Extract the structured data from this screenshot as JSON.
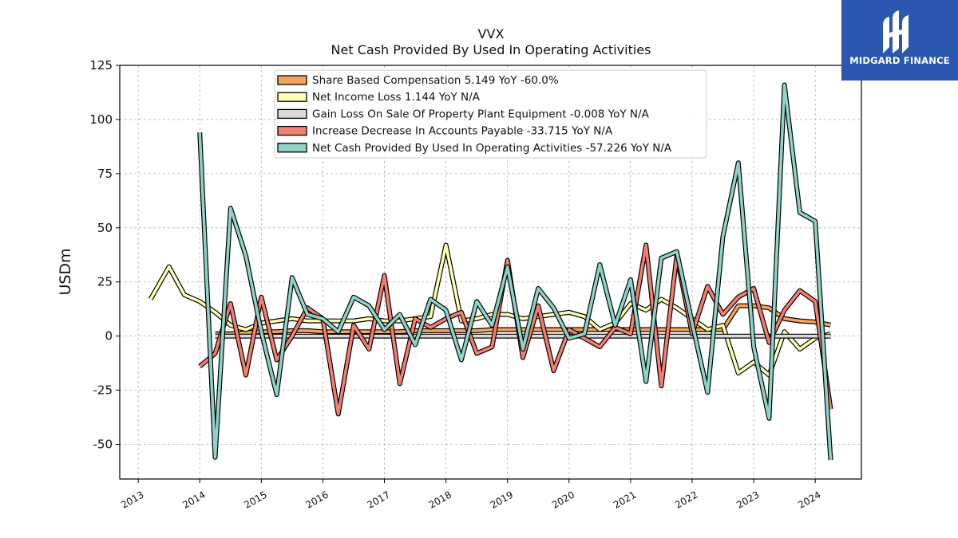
{
  "chart_data": {
    "type": "line",
    "title": "VVX",
    "subtitle": "Net Cash Provided By Used In Operating Activities",
    "ylabel": "USDm",
    "xlabel": "",
    "xlim": [
      2012.7,
      2024.75
    ],
    "ylim": [
      -66,
      125
    ],
    "yticks": [
      -50,
      -25,
      0,
      25,
      50,
      75,
      100,
      125
    ],
    "xticks": [
      2013,
      2014,
      2015,
      2016,
      2017,
      2018,
      2019,
      2020,
      2021,
      2022,
      2023,
      2024
    ],
    "grid": true,
    "legend_position": "top-center",
    "series": [
      {
        "name": "Share Based Compensation",
        "legend": "Share Based Compensation  5.149 YoY -60.0%",
        "color": "#f4a45f",
        "x": [
          2014.25,
          2014.5,
          2014.75,
          2015.0,
          2015.25,
          2015.5,
          2015.75,
          2016.0,
          2016.25,
          2016.5,
          2016.75,
          2017.0,
          2017.25,
          2017.5,
          2017.75,
          2018.0,
          2018.25,
          2018.5,
          2018.75,
          2019.0,
          2019.25,
          2019.5,
          2019.75,
          2020.0,
          2020.25,
          2020.5,
          2020.75,
          2021.0,
          2021.25,
          2021.5,
          2021.75,
          2022.0,
          2022.25,
          2022.5,
          2022.75,
          2023.0,
          2023.25,
          2023.5,
          2023.75,
          2024.0,
          2024.25
        ],
        "values": [
          1,
          1,
          1.5,
          2,
          2,
          2.5,
          2.5,
          2,
          2,
          2,
          2,
          2,
          2,
          2.5,
          2.5,
          2.5,
          2.5,
          2.5,
          3,
          3,
          3,
          3,
          3,
          3,
          3,
          3,
          3,
          3,
          3,
          3,
          3,
          3,
          3,
          3,
          14,
          14,
          13,
          8,
          7,
          6.5,
          5.1
        ]
      },
      {
        "name": "Net Income Loss",
        "legend": "Net Income Loss  1.144 YoY N/A",
        "color": "#ffffb3",
        "x": [
          2013.2,
          2013.5,
          2013.75,
          2014.0,
          2014.25,
          2014.5,
          2014.75,
          2015.0,
          2015.25,
          2015.5,
          2015.75,
          2016.0,
          2016.25,
          2016.5,
          2016.75,
          2017.0,
          2017.25,
          2017.5,
          2017.75,
          2018.0,
          2018.25,
          2018.5,
          2018.75,
          2019.0,
          2019.25,
          2019.5,
          2019.75,
          2020.0,
          2020.25,
          2020.5,
          2020.75,
          2021.0,
          2021.25,
          2021.5,
          2021.75,
          2022.0,
          2022.25,
          2022.5,
          2022.75,
          2023.0,
          2023.25,
          2023.5,
          2023.75,
          2024.0,
          2024.25
        ],
        "values": [
          17,
          32,
          19,
          16,
          11,
          5,
          3,
          6,
          7,
          8,
          7,
          7,
          7,
          7,
          8,
          7,
          7,
          8,
          9,
          42,
          7,
          8,
          10,
          10,
          8,
          9,
          10,
          11,
          9,
          3,
          6,
          15,
          12,
          17,
          13,
          8,
          3,
          5,
          -17,
          -12,
          -18,
          2,
          -6,
          -1,
          1.1
        ]
      },
      {
        "name": "Gain Loss On Sale Of Property Plant Equipment",
        "legend": "Gain Loss On Sale Of Property Plant Equipment  -0.008 YoY N/A",
        "color": "#d9d9d9",
        "x": [
          2014.25,
          2014.5,
          2014.75,
          2015.0,
          2015.25,
          2015.5,
          2015.75,
          2016.0,
          2016.25,
          2016.5,
          2016.75,
          2017.0,
          2017.25,
          2017.5,
          2017.75,
          2018.0,
          2018.25,
          2018.5,
          2018.75,
          2019.0,
          2019.25,
          2019.5,
          2019.75,
          2020.0,
          2020.25,
          2020.5,
          2020.75,
          2021.0,
          2021.25,
          2021.5,
          2021.75,
          2022.0,
          2022.25,
          2022.5,
          2022.75,
          2023.0,
          2023.25,
          2023.5,
          2023.75,
          2024.0,
          2024.25
        ],
        "values": [
          0,
          0,
          0,
          0,
          0,
          0,
          0,
          0,
          0,
          0,
          0,
          0,
          0,
          0,
          0,
          0,
          0,
          0,
          0,
          0,
          0,
          0,
          0,
          0,
          0,
          0,
          0,
          0,
          0,
          0,
          0,
          0,
          0,
          0,
          0,
          0,
          0,
          0,
          0,
          0,
          -0.008
        ]
      },
      {
        "name": "Increase Decrease In Accounts Payable",
        "legend": "Increase Decrease In Accounts Payable  -33.715 YoY N/A",
        "color": "#f47e6f",
        "x": [
          2014.0,
          2014.25,
          2014.5,
          2014.75,
          2015.0,
          2015.25,
          2015.5,
          2015.75,
          2016.0,
          2016.25,
          2016.5,
          2016.75,
          2017.0,
          2017.25,
          2017.5,
          2017.75,
          2018.0,
          2018.25,
          2018.5,
          2018.75,
          2019.0,
          2019.25,
          2019.5,
          2019.75,
          2020.0,
          2020.25,
          2020.5,
          2020.75,
          2021.0,
          2021.25,
          2021.5,
          2021.75,
          2022.0,
          2022.25,
          2022.5,
          2022.75,
          2023.0,
          2023.25,
          2023.5,
          2023.75,
          2024.0,
          2024.25
        ],
        "values": [
          -14,
          -8,
          15,
          -18,
          18,
          -11,
          0,
          13,
          8,
          -36,
          5,
          -6,
          28,
          -22,
          8,
          4,
          8,
          11,
          -8,
          -5,
          35,
          -10,
          14,
          -16,
          3,
          -1,
          -5,
          4,
          1,
          42,
          -23,
          37,
          1,
          23,
          10,
          18,
          22,
          -3,
          12,
          21,
          16,
          -33.7
        ]
      },
      {
        "name": "Net Cash Provided By Used In Operating Activities",
        "legend": "Net Cash Provided By Used In Operating Activities  -57.226 YoY N/A",
        "color": "#8dd3c7",
        "x": [
          2014.0,
          2014.25,
          2014.5,
          2014.75,
          2015.0,
          2015.25,
          2015.5,
          2015.75,
          2016.0,
          2016.25,
          2016.5,
          2016.75,
          2017.0,
          2017.25,
          2017.5,
          2017.75,
          2018.0,
          2018.25,
          2018.5,
          2018.75,
          2019.0,
          2019.25,
          2019.5,
          2019.75,
          2020.0,
          2020.25,
          2020.5,
          2020.75,
          2021.0,
          2021.25,
          2021.5,
          2021.75,
          2022.0,
          2022.25,
          2022.5,
          2022.75,
          2023.0,
          2023.25,
          2023.5,
          2023.75,
          2024.0,
          2024.25
        ],
        "values": [
          94,
          -56,
          59,
          37,
          2,
          -27,
          27,
          10,
          8,
          2,
          18,
          14,
          3,
          10,
          -4,
          17,
          12,
          -11,
          16,
          5,
          32,
          -6,
          22,
          13,
          -1,
          1,
          33,
          5,
          26,
          -21,
          36,
          39,
          6,
          -26,
          46,
          80,
          -5,
          -38,
          116,
          57,
          53,
          -57.2
        ]
      }
    ]
  },
  "logo": {
    "text": "MIDGARD FINANCE",
    "bg_color": "#2a57b0"
  }
}
